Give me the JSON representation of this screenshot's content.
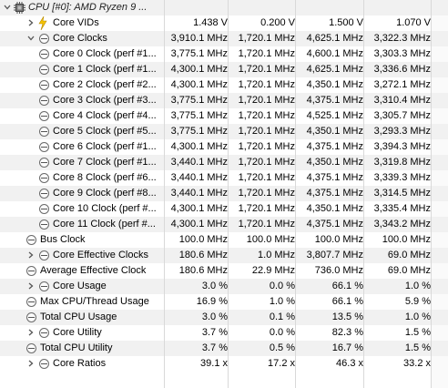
{
  "header": {
    "label": "CPU [#0]: AMD Ryzen 9 ..."
  },
  "rows": [
    {
      "label": "Core VIDs",
      "indent": 1,
      "expander": "collapsed",
      "icon": "bolt-icon",
      "values": [
        "1.438 V",
        "0.200 V",
        "1.500 V",
        "1.070 V"
      ]
    },
    {
      "label": "Core Clocks",
      "indent": 1,
      "expander": "expanded",
      "icon": "clock-icon",
      "values": [
        "3,910.1 MHz",
        "1,720.1 MHz",
        "4,625.1 MHz",
        "3,322.3 MHz"
      ]
    },
    {
      "label": "Core 0 Clock (perf #1...",
      "indent": 2,
      "expander": "none",
      "icon": "clock-icon",
      "values": [
        "3,775.1 MHz",
        "1,720.1 MHz",
        "4,600.1 MHz",
        "3,303.3 MHz"
      ]
    },
    {
      "label": "Core 1 Clock (perf #1...",
      "indent": 2,
      "expander": "none",
      "icon": "clock-icon",
      "values": [
        "4,300.1 MHz",
        "1,720.1 MHz",
        "4,625.1 MHz",
        "3,336.6 MHz"
      ]
    },
    {
      "label": "Core 2 Clock (perf #2...",
      "indent": 2,
      "expander": "none",
      "icon": "clock-icon",
      "values": [
        "4,300.1 MHz",
        "1,720.1 MHz",
        "4,350.1 MHz",
        "3,272.1 MHz"
      ]
    },
    {
      "label": "Core 3 Clock (perf #3...",
      "indent": 2,
      "expander": "none",
      "icon": "clock-icon",
      "values": [
        "3,775.1 MHz",
        "1,720.1 MHz",
        "4,375.1 MHz",
        "3,310.4 MHz"
      ]
    },
    {
      "label": "Core 4 Clock (perf #4...",
      "indent": 2,
      "expander": "none",
      "icon": "clock-icon",
      "values": [
        "3,775.1 MHz",
        "1,720.1 MHz",
        "4,525.1 MHz",
        "3,305.7 MHz"
      ]
    },
    {
      "label": "Core 5 Clock (perf #5...",
      "indent": 2,
      "expander": "none",
      "icon": "clock-icon",
      "values": [
        "3,775.1 MHz",
        "1,720.1 MHz",
        "4,350.1 MHz",
        "3,293.3 MHz"
      ]
    },
    {
      "label": "Core 6 Clock (perf #1...",
      "indent": 2,
      "expander": "none",
      "icon": "clock-icon",
      "values": [
        "4,300.1 MHz",
        "1,720.1 MHz",
        "4,375.1 MHz",
        "3,394.3 MHz"
      ]
    },
    {
      "label": "Core 7 Clock (perf #1...",
      "indent": 2,
      "expander": "none",
      "icon": "clock-icon",
      "values": [
        "3,440.1 MHz",
        "1,720.1 MHz",
        "4,350.1 MHz",
        "3,319.8 MHz"
      ]
    },
    {
      "label": "Core 8 Clock (perf #6...",
      "indent": 2,
      "expander": "none",
      "icon": "clock-icon",
      "values": [
        "3,440.1 MHz",
        "1,720.1 MHz",
        "4,375.1 MHz",
        "3,339.3 MHz"
      ]
    },
    {
      "label": "Core 9 Clock (perf #8...",
      "indent": 2,
      "expander": "none",
      "icon": "clock-icon",
      "values": [
        "3,440.1 MHz",
        "1,720.1 MHz",
        "4,375.1 MHz",
        "3,314.5 MHz"
      ]
    },
    {
      "label": "Core 10 Clock (perf #...",
      "indent": 2,
      "expander": "none",
      "icon": "clock-icon",
      "values": [
        "4,300.1 MHz",
        "1,720.1 MHz",
        "4,350.1 MHz",
        "3,335.4 MHz"
      ]
    },
    {
      "label": "Core 11 Clock (perf #...",
      "indent": 2,
      "expander": "none",
      "icon": "clock-icon",
      "values": [
        "4,300.1 MHz",
        "1,720.1 MHz",
        "4,375.1 MHz",
        "3,343.2 MHz"
      ]
    },
    {
      "label": "Bus Clock",
      "indent": 0,
      "expander": "none",
      "icon": "clock-icon",
      "values": [
        "100.0 MHz",
        "100.0 MHz",
        "100.0 MHz",
        "100.0 MHz"
      ]
    },
    {
      "label": "Core Effective Clocks",
      "indent": 1,
      "expander": "collapsed",
      "icon": "clock-icon",
      "values": [
        "180.6 MHz",
        "1.0 MHz",
        "3,807.7 MHz",
        "69.0 MHz"
      ]
    },
    {
      "label": "Average Effective Clock",
      "indent": 0,
      "expander": "none",
      "icon": "clock-icon",
      "values": [
        "180.6 MHz",
        "22.9 MHz",
        "736.0 MHz",
        "69.0 MHz"
      ]
    },
    {
      "label": "Core Usage",
      "indent": 1,
      "expander": "collapsed",
      "icon": "clock-icon",
      "values": [
        "3.0 %",
        "0.0 %",
        "66.1 %",
        "1.0 %"
      ]
    },
    {
      "label": "Max CPU/Thread Usage",
      "indent": 0,
      "expander": "none",
      "icon": "clock-icon",
      "values": [
        "16.9 %",
        "1.0 %",
        "66.1 %",
        "5.9 %"
      ]
    },
    {
      "label": "Total CPU Usage",
      "indent": 0,
      "expander": "none",
      "icon": "clock-icon",
      "values": [
        "3.0 %",
        "0.1 %",
        "13.5 %",
        "1.0 %"
      ]
    },
    {
      "label": "Core Utility",
      "indent": 1,
      "expander": "collapsed",
      "icon": "clock-icon",
      "values": [
        "3.7 %",
        "0.0 %",
        "82.3 %",
        "1.5 %"
      ]
    },
    {
      "label": "Total CPU Utility",
      "indent": 0,
      "expander": "none",
      "icon": "clock-icon",
      "values": [
        "3.7 %",
        "0.5 %",
        "16.7 %",
        "1.5 %"
      ]
    },
    {
      "label": "Core Ratios",
      "indent": 1,
      "expander": "collapsed",
      "icon": "clock-icon",
      "values": [
        "39.1 x",
        "17.2 x",
        "46.3 x",
        "33.2 x"
      ]
    }
  ]
}
